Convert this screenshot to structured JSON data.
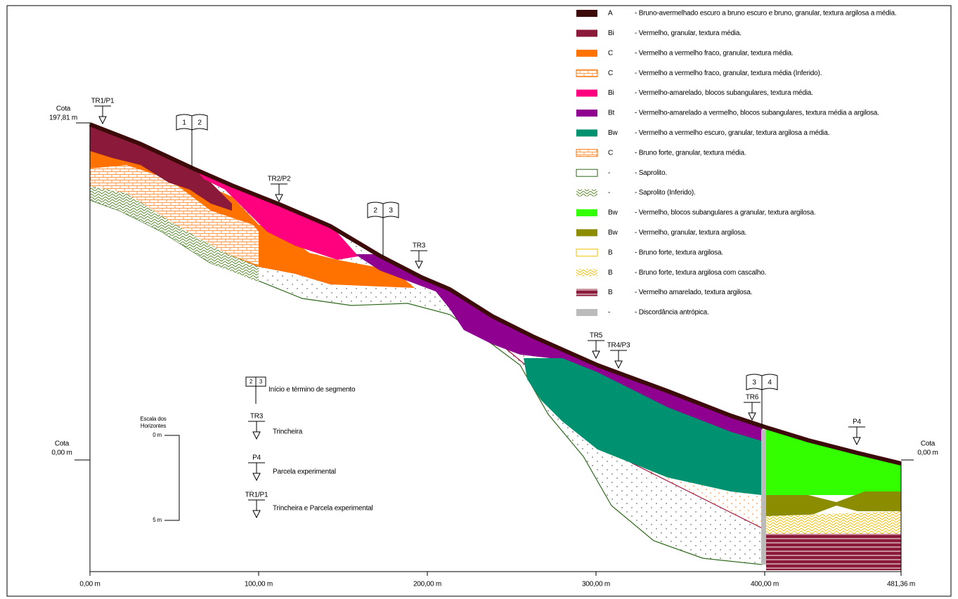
{
  "legend": [
    {
      "code": "A",
      "description": "- Bruno-avermelhado escuro a bruno escuro e bruno, granular, textura argilosa a média."
    },
    {
      "code": "Bi",
      "description": "- Vermelho, granular, textura média."
    },
    {
      "code": "C",
      "description": "- Vermelho a vermelho fraco, granular, textura média."
    },
    {
      "code": "C",
      "description": "- Vermelho a vermelho fraco, granular, textura média (Inferido)."
    },
    {
      "code": "Bi",
      "description": "- Vermelho-amarelado, blocos subangulares, textura média."
    },
    {
      "code": "Bt",
      "description": "- Vermelho-amarelado a vermelho, blocos subangulares, textura média a argilosa."
    },
    {
      "code": "Bw",
      "description": "- Vermelho a vermelho escuro, granular, textura argilosa a média."
    },
    {
      "code": "C",
      "description": "- Bruno forte, granular, textura média."
    },
    {
      "code": "-",
      "description": "- Saprolito."
    },
    {
      "code": "-",
      "description": "- Saprolito (Inferido)."
    },
    {
      "code": "Bw",
      "description": "- Vermelho, blocos subangulares a granular, textura argilosa."
    },
    {
      "code": "Bw",
      "description": "- Vermelho, granular, textura argilosa."
    },
    {
      "code": "B",
      "description": "- Bruno forte, textura argilosa."
    },
    {
      "code": "B",
      "description": "- Bruno forte, textura argilosa com cascalho."
    },
    {
      "code": "B",
      "description": "- Vermelho amarelado, textura argilosa."
    },
    {
      "code": "-",
      "description": "- Discordância antrópica."
    }
  ],
  "profile": {
    "elevation_labels": [
      {
        "label": "Cota",
        "value": "197,81 m"
      },
      {
        "label": "Cota",
        "value": "0,00 m"
      },
      {
        "label": "Cota",
        "value": "0,00 m"
      }
    ],
    "distance_labels": [
      "0,00 m",
      "100,00 m",
      "200,00 m",
      "300,00 m",
      "400,00 m",
      "481,36 m"
    ],
    "sampling_points": [
      "TR1/P1",
      "TR2/P2",
      "TR3",
      "TR5",
      "TR4/P3",
      "TR6",
      "P4"
    ],
    "segments": [
      [
        "1",
        "2"
      ],
      [
        "2",
        "3"
      ],
      [
        "3",
        "4"
      ]
    ]
  },
  "key": {
    "items": [
      {
        "symbol": [
          "2",
          "3"
        ],
        "label": "Início e término de segmento"
      },
      {
        "symbol": "TR3",
        "label": "Trincheira"
      },
      {
        "symbol": "P4",
        "label": "Parcela experimental"
      },
      {
        "symbol": "TR1/P1",
        "label": "Trincheira e Parcela experimental"
      }
    ]
  },
  "scale": {
    "title": [
      "Escala dos",
      "Horizontes"
    ],
    "ticks": [
      "0 m",
      "5 m"
    ]
  }
}
